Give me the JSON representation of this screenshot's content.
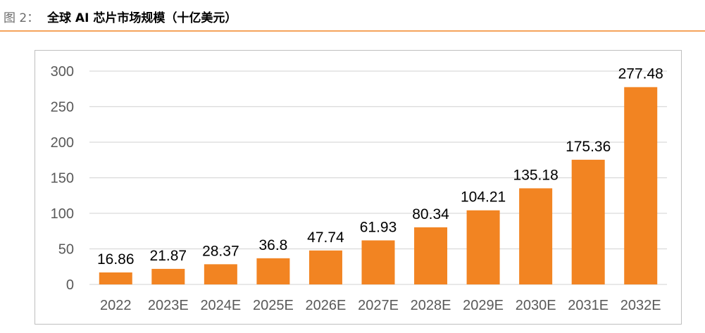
{
  "figure": {
    "label": "图 2：",
    "title": "全球 AI 芯片市场规模（十亿美元）"
  },
  "colors": {
    "bar": "#f28422",
    "header_rule": "#f5a35c",
    "gridline": "#d9d9d9"
  },
  "chart_data": {
    "type": "bar",
    "title": "",
    "xlabel": "",
    "ylabel": "",
    "categories": [
      "2022",
      "2023E",
      "2024E",
      "2025E",
      "2026E",
      "2027E",
      "2028E",
      "2029E",
      "2030E",
      "2031E",
      "2032E"
    ],
    "values": [
      16.86,
      21.87,
      28.37,
      36.8,
      47.74,
      61.93,
      80.34,
      104.21,
      135.18,
      175.36,
      277.48
    ],
    "value_labels": [
      "16.86",
      "21.87",
      "28.37",
      "36.8",
      "47.74",
      "61.93",
      "80.34",
      "104.21",
      "135.18",
      "175.36",
      "277.48"
    ],
    "ylim": [
      0,
      300
    ],
    "yticks": [
      0,
      50,
      100,
      150,
      200,
      250,
      300
    ],
    "grid": true,
    "legend": "none"
  }
}
